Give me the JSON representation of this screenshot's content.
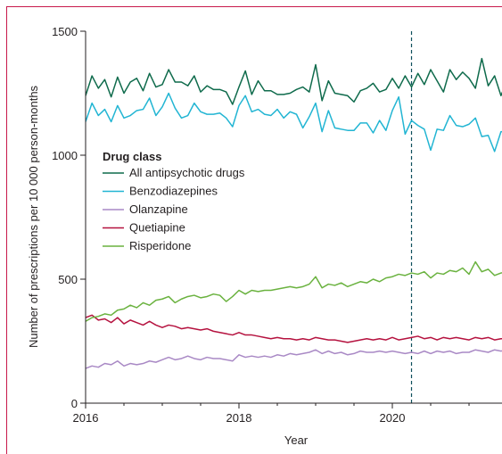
{
  "colors": {
    "border": "#c8194b",
    "axis": "#231f20",
    "all": "#0f6b4c",
    "benzo": "#22b5d3",
    "olanz": "#a989c5",
    "quet": "#b5123f",
    "risp": "#6ab23f"
  },
  "chart_data": {
    "type": "line",
    "xlabel": "Year",
    "ylabel": "Number of prescriptions per 10 000 person-months",
    "xlim": [
      2016.0,
      2021.43
    ],
    "ylim": [
      0,
      1500
    ],
    "xticks": [
      2016,
      2018,
      2020
    ],
    "xtick_labels": [
      "2016",
      "2018",
      "2020"
    ],
    "yticks": [
      0,
      500,
      1000,
      1500
    ],
    "ytick_labels": [
      "0",
      "500",
      "1000",
      "1500"
    ],
    "vline": {
      "x": 2020.25,
      "style": "dashed"
    },
    "grid": false,
    "legend": {
      "title": "Drug class",
      "placement": "center-left",
      "entries": [
        "All antipsychotic drugs",
        "Benzodiazepines",
        "Olanzapine",
        "Quetiapine",
        "Risperidone"
      ]
    },
    "x_start": 2016.0,
    "x_step_months": 1,
    "series": [
      {
        "name": "All antipsychotic drugs",
        "color_key": "all",
        "values": [
          1240,
          1320,
          1270,
          1305,
          1235,
          1315,
          1250,
          1295,
          1310,
          1260,
          1330,
          1275,
          1285,
          1345,
          1295,
          1295,
          1280,
          1320,
          1255,
          1280,
          1265,
          1265,
          1255,
          1205,
          1275,
          1340,
          1245,
          1300,
          1260,
          1260,
          1245,
          1245,
          1250,
          1265,
          1275,
          1255,
          1365,
          1220,
          1300,
          1250,
          1245,
          1240,
          1215,
          1260,
          1270,
          1290,
          1255,
          1265,
          1310,
          1270,
          1320,
          1275,
          1330,
          1285,
          1345,
          1300,
          1255,
          1345,
          1305,
          1335,
          1310,
          1270,
          1390,
          1280,
          1320,
          1240,
          1305
        ]
      },
      {
        "name": "Benzodiazepines",
        "color_key": "benzo",
        "values": [
          1135,
          1210,
          1160,
          1185,
          1135,
          1200,
          1150,
          1160,
          1180,
          1185,
          1230,
          1160,
          1195,
          1250,
          1190,
          1150,
          1160,
          1210,
          1175,
          1165,
          1165,
          1170,
          1150,
          1115,
          1200,
          1240,
          1175,
          1185,
          1165,
          1160,
          1185,
          1150,
          1175,
          1165,
          1110,
          1155,
          1210,
          1095,
          1180,
          1110,
          1105,
          1100,
          1100,
          1130,
          1130,
          1090,
          1140,
          1100,
          1180,
          1235,
          1085,
          1140,
          1120,
          1105,
          1020,
          1105,
          1100,
          1160,
          1120,
          1115,
          1125,
          1150,
          1075,
          1080,
          1015,
          1095,
          1095
        ]
      },
      {
        "name": "Olanzapine",
        "color_key": "olanz",
        "values": [
          140,
          150,
          145,
          160,
          155,
          170,
          150,
          160,
          155,
          160,
          170,
          165,
          175,
          185,
          175,
          180,
          190,
          180,
          175,
          185,
          180,
          180,
          175,
          170,
          195,
          185,
          190,
          185,
          190,
          185,
          195,
          190,
          200,
          195,
          200,
          205,
          215,
          200,
          210,
          200,
          205,
          195,
          200,
          210,
          205,
          205,
          210,
          205,
          210,
          205,
          200,
          205,
          200,
          210,
          200,
          210,
          205,
          210,
          200,
          205,
          205,
          215,
          210,
          205,
          215,
          210,
          215
        ]
      },
      {
        "name": "Quetiapine",
        "color_key": "quet",
        "values": [
          345,
          355,
          335,
          340,
          325,
          345,
          320,
          335,
          325,
          315,
          330,
          315,
          305,
          315,
          310,
          300,
          305,
          300,
          295,
          300,
          290,
          285,
          280,
          275,
          285,
          275,
          275,
          270,
          265,
          260,
          265,
          260,
          260,
          255,
          260,
          255,
          265,
          260,
          255,
          255,
          250,
          245,
          250,
          255,
          260,
          255,
          260,
          255,
          265,
          255,
          260,
          265,
          270,
          260,
          265,
          255,
          265,
          260,
          265,
          260,
          255,
          265,
          260,
          265,
          255,
          260,
          260
        ]
      },
      {
        "name": "Risperidone",
        "color_key": "risp",
        "values": [
          330,
          345,
          350,
          360,
          355,
          375,
          380,
          395,
          385,
          405,
          395,
          415,
          420,
          430,
          405,
          420,
          430,
          435,
          425,
          430,
          440,
          435,
          410,
          430,
          455,
          440,
          455,
          450,
          455,
          455,
          460,
          465,
          470,
          465,
          470,
          480,
          510,
          465,
          480,
          475,
          485,
          470,
          480,
          490,
          485,
          500,
          490,
          505,
          510,
          520,
          515,
          525,
          520,
          530,
          505,
          525,
          520,
          535,
          530,
          545,
          520,
          570,
          530,
          540,
          515,
          525,
          530
        ]
      }
    ]
  }
}
